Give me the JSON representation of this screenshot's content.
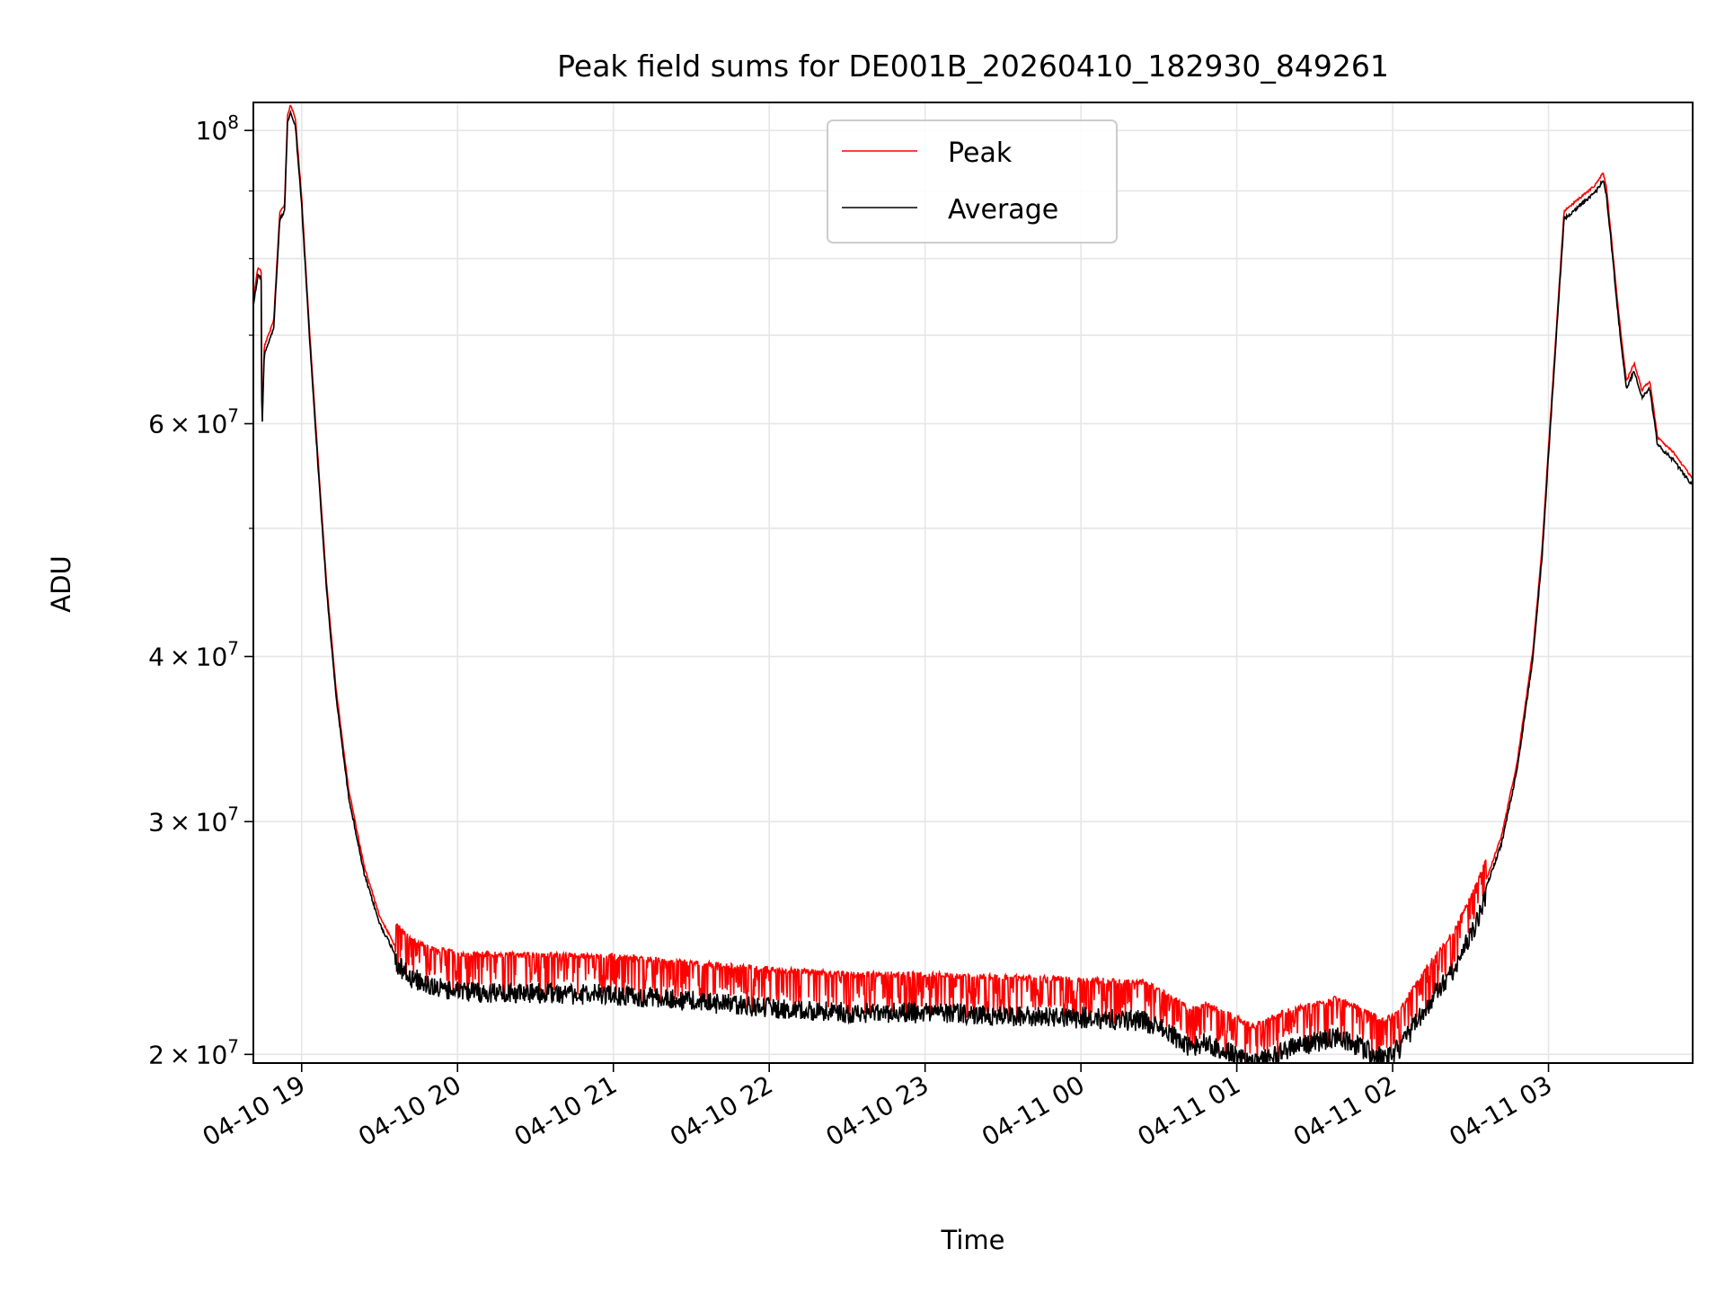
{
  "chart_data": {
    "type": "line",
    "title": "Peak field sums for DE001B_20260410_182930_849261",
    "xlabel": "Time",
    "ylabel": "ADU",
    "yscale": "log",
    "ylim": [
      19700000,
      105000000
    ],
    "xlim_hours": [
      18.69,
      27.925
    ],
    "grid": true,
    "legend_position": "upper center",
    "x_ticks": [
      {
        "h": 19,
        "label": "04-10 19"
      },
      {
        "h": 20,
        "label": "04-10 20"
      },
      {
        "h": 21,
        "label": "04-10 21"
      },
      {
        "h": 22,
        "label": "04-10 22"
      },
      {
        "h": 23,
        "label": "04-10 23"
      },
      {
        "h": 24,
        "label": "04-11 00"
      },
      {
        "h": 25,
        "label": "04-11 01"
      },
      {
        "h": 26,
        "label": "04-11 02"
      },
      {
        "h": 27,
        "label": "04-11 03"
      }
    ],
    "y_major_ticks": [
      {
        "v": 20000000,
        "mant": "2",
        "exp": "7",
        "times": "×",
        "base": "10"
      },
      {
        "v": 30000000,
        "mant": "3",
        "exp": "7",
        "times": "×",
        "base": "10"
      },
      {
        "v": 40000000,
        "mant": "4",
        "exp": "7",
        "times": "×",
        "base": "10"
      },
      {
        "v": 60000000,
        "mant": "6",
        "exp": "7",
        "times": "×",
        "base": "10"
      },
      {
        "v": 100000000,
        "mant": "",
        "exp": "8",
        "times": "",
        "base": "10"
      }
    ],
    "y_minor_ticks": [
      50000000,
      70000000,
      80000000,
      90000000
    ],
    "series": [
      {
        "name": "Peak",
        "color": "#ff0000"
      },
      {
        "name": "Average",
        "color": "#000000"
      }
    ],
    "average_profile": [
      [
        18.69,
        74000000
      ],
      [
        18.72,
        78000000
      ],
      [
        18.74,
        77500000
      ],
      [
        18.745,
        59000000
      ],
      [
        18.76,
        68000000
      ],
      [
        18.82,
        71000000
      ],
      [
        18.86,
        86000000
      ],
      [
        18.89,
        87000000
      ],
      [
        18.91,
        102000000
      ],
      [
        18.93,
        103500000
      ],
      [
        18.96,
        101000000
      ],
      [
        19.0,
        88000000
      ],
      [
        19.05,
        70000000
      ],
      [
        19.1,
        57000000
      ],
      [
        19.16,
        45000000
      ],
      [
        19.22,
        37500000
      ],
      [
        19.3,
        31500000
      ],
      [
        19.4,
        27500000
      ],
      [
        19.5,
        25200000
      ],
      [
        19.6,
        23900000
      ],
      [
        19.7,
        23300000
      ],
      [
        19.85,
        22900000
      ],
      [
        20.0,
        22700000
      ],
      [
        21.0,
        22600000
      ],
      [
        22.0,
        22100000
      ],
      [
        22.5,
        21900000
      ],
      [
        23.0,
        21900000
      ],
      [
        24.0,
        21700000
      ],
      [
        24.4,
        21600000
      ],
      [
        24.6,
        21000000
      ],
      [
        24.7,
        20600000
      ],
      [
        24.8,
        20800000
      ],
      [
        25.0,
        20300000
      ],
      [
        25.1,
        20000000
      ],
      [
        25.3,
        20500000
      ],
      [
        25.5,
        20800000
      ],
      [
        25.65,
        21000000
      ],
      [
        25.8,
        20600000
      ],
      [
        25.95,
        20200000
      ],
      [
        26.05,
        20600000
      ],
      [
        26.2,
        22000000
      ],
      [
        26.4,
        23700000
      ],
      [
        26.55,
        25800000
      ],
      [
        26.7,
        29000000
      ],
      [
        26.8,
        33000000
      ],
      [
        26.9,
        40000000
      ],
      [
        26.96,
        48000000
      ],
      [
        27.0,
        57000000
      ],
      [
        27.05,
        70000000
      ],
      [
        27.1,
        86000000
      ],
      [
        27.2,
        88000000
      ],
      [
        27.3,
        90000000
      ],
      [
        27.35,
        92000000
      ],
      [
        27.37,
        90000000
      ],
      [
        27.4,
        83000000
      ],
      [
        27.45,
        72000000
      ],
      [
        27.5,
        64000000
      ],
      [
        27.55,
        66000000
      ],
      [
        27.6,
        63000000
      ],
      [
        27.65,
        64000000
      ],
      [
        27.7,
        58000000
      ],
      [
        27.8,
        56500000
      ],
      [
        27.925,
        54000000
      ]
    ]
  }
}
